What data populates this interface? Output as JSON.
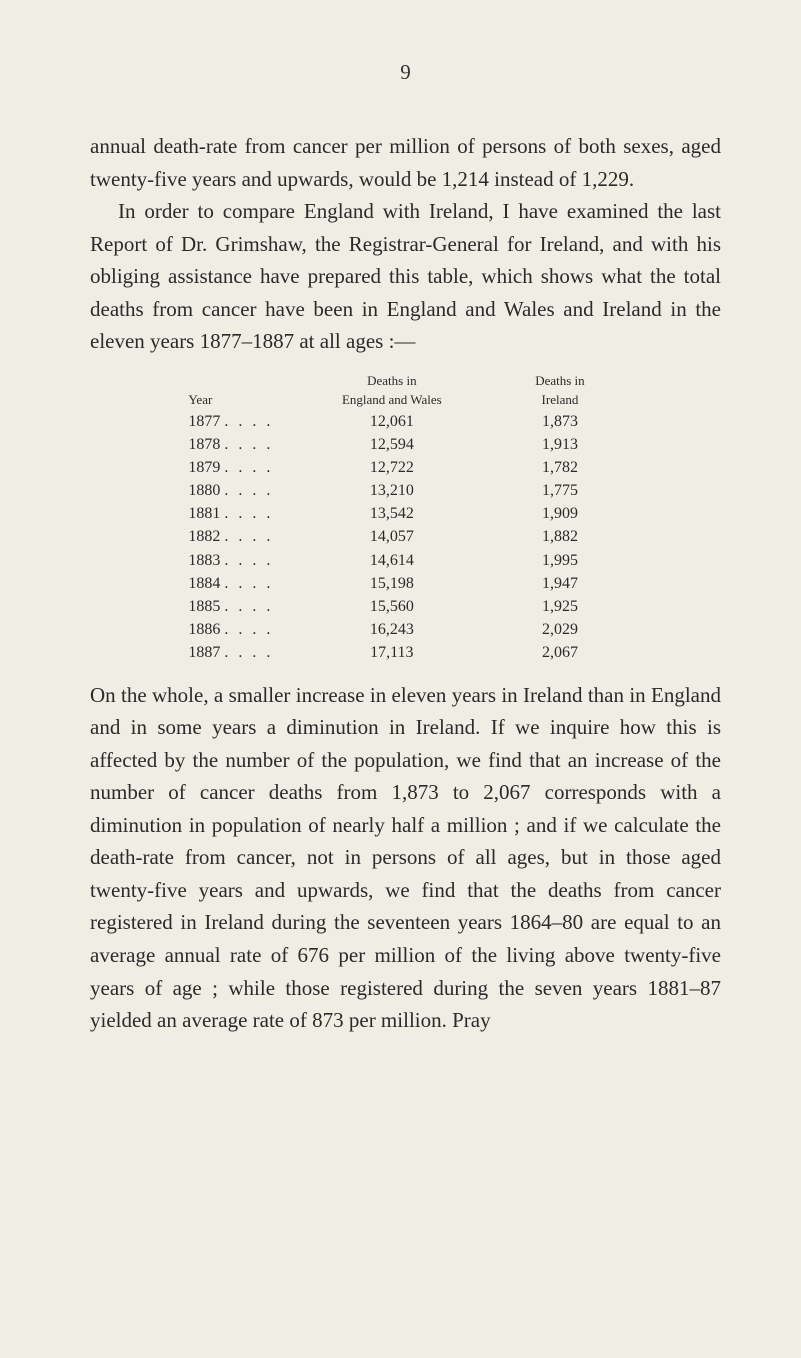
{
  "page_number": "9",
  "paragraphs": {
    "p1": "annual death-rate from cancer per million of persons of both sexes, aged twenty-five years and upwards, would be 1,214 instead of 1,229.",
    "p2": "In order to compare England with Ireland, I have examined the last Report of Dr. Grimshaw, the Registrar-General for Ireland, and with his obliging assistance have prepared this table, which shows what the total deaths from cancer have been in England and Wales and Ireland in the eleven years 1877–1887 at all ages :—",
    "p3": "On the whole, a smaller increase in eleven years in Ireland than in England and in some years a diminution in Ireland. If we inquire how this is affected by the number of the population, we find that an increase of the number of cancer deaths from 1,873 to 2,067 corresponds with a diminution in population of nearly half a million ; and if we calculate the death-rate from cancer, not in persons of all ages, but in those aged twenty-five years and upwards, we find that the deaths from cancer registered in Ireland during the seventeen years 1864–80 are equal to an average annual rate of 676 per million of the living above twenty-five years of age ; while those registered during the seven years 1881–87 yielded an average rate of 873 per million. Pray"
  },
  "table": {
    "headers": {
      "year": "Year",
      "ew_line1": "Deaths in",
      "ew_line2": "England and Wales",
      "ire_line1": "Deaths in",
      "ire_line2": "Ireland"
    },
    "rows": [
      {
        "year": "1877",
        "ew": "12,061",
        "ire": "1,873"
      },
      {
        "year": "1878",
        "ew": "12,594",
        "ire": "1,913"
      },
      {
        "year": "1879",
        "ew": "12,722",
        "ire": "1,782"
      },
      {
        "year": "1880",
        "ew": "13,210",
        "ire": "1,775"
      },
      {
        "year": "1881",
        "ew": "13,542",
        "ire": "1,909"
      },
      {
        "year": "1882",
        "ew": "14,057",
        "ire": "1,882"
      },
      {
        "year": "1883",
        "ew": "14,614",
        "ire": "1,995"
      },
      {
        "year": "1884",
        "ew": "15,198",
        "ire": "1,947"
      },
      {
        "year": "1885",
        "ew": "15,560",
        "ire": "1,925"
      },
      {
        "year": "1886",
        "ew": "16,243",
        "ire": "2,029"
      },
      {
        "year": "1887",
        "ew": "17,113",
        "ire": "2,067"
      }
    ]
  },
  "styling": {
    "background_color": "#f0ede4",
    "text_color": "#2a2a2a",
    "body_fontsize": 21,
    "table_fontsize": 16,
    "table_header_fontsize": 13,
    "line_height": 1.55
  }
}
